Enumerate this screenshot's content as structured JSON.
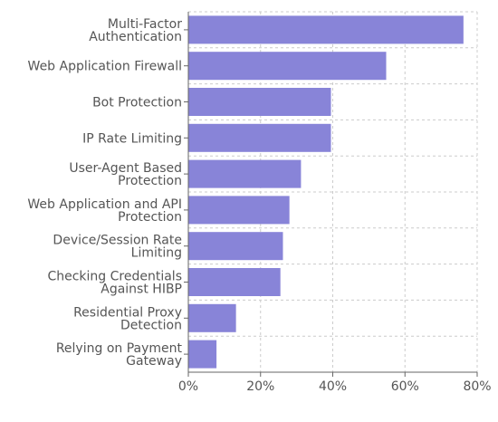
{
  "chart_data": {
    "type": "bar",
    "orientation": "horizontal",
    "title": "",
    "xlabel": "",
    "ylabel": "",
    "categories": [
      [
        "Multi-Factor",
        "Authentication"
      ],
      [
        "Web Application Firewall"
      ],
      [
        "Bot Protection"
      ],
      [
        "IP Rate Limiting"
      ],
      [
        "User-Agent Based",
        "Protection"
      ],
      [
        "Web Application and API",
        "Protection"
      ],
      [
        "Device/Session Rate",
        "Limiting"
      ],
      [
        "Checking Credentials",
        "Against HIBP"
      ],
      [
        "Residential Proxy",
        "Detection"
      ],
      [
        "Relying on Payment",
        "Gateway"
      ]
    ],
    "values": [
      76.2,
      54.8,
      39.5,
      39.5,
      31.2,
      28.0,
      26.2,
      25.5,
      13.2,
      7.8
    ],
    "xlim": [
      0,
      80
    ],
    "xticks": [
      0,
      20,
      40,
      60,
      80
    ],
    "tick_suffix": "%",
    "grid": true,
    "bar_color": "#8884d8",
    "text_color": "#555555",
    "grid_color": "#cccccc",
    "axis_color": "#666666"
  }
}
